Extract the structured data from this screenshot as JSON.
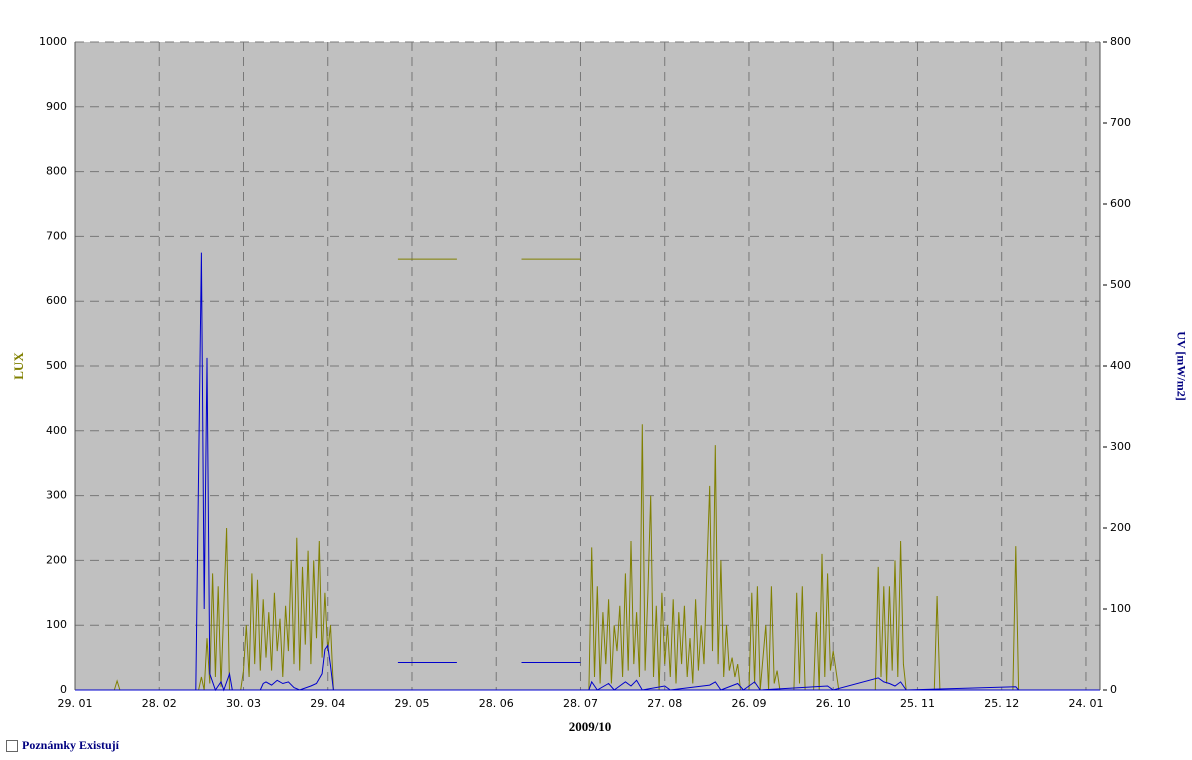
{
  "chart_data": {
    "type": "line",
    "y_label": "LUX",
    "y2_label": "UV [mW/m2]",
    "x_label": "2009/10",
    "xlim": [
      0,
      365
    ],
    "xticks": [
      {
        "value": 0,
        "label": "29. 01"
      },
      {
        "value": 30,
        "label": "28. 02"
      },
      {
        "value": 60,
        "label": "30. 03"
      },
      {
        "value": 90,
        "label": "29. 04"
      },
      {
        "value": 120,
        "label": "29. 05"
      },
      {
        "value": 150,
        "label": "28. 06"
      },
      {
        "value": 180,
        "label": "28. 07"
      },
      {
        "value": 210,
        "label": "27. 08"
      },
      {
        "value": 240,
        "label": "26. 09"
      },
      {
        "value": 270,
        "label": "26. 10"
      },
      {
        "value": 300,
        "label": "25. 11"
      },
      {
        "value": 330,
        "label": "25. 12"
      },
      {
        "value": 360,
        "label": "24. 01"
      }
    ],
    "ylim": [
      0,
      1000
    ],
    "yticks": [
      0,
      100,
      200,
      300,
      400,
      500,
      600,
      700,
      800,
      900,
      1000
    ],
    "y2lim": [
      0,
      800
    ],
    "y2ticks": [
      0,
      100,
      200,
      300,
      400,
      500,
      600,
      700,
      800
    ],
    "grid": true,
    "series": [
      {
        "color": "#808000",
        "axis": "y",
        "x": [
          0,
          14,
          15,
          16,
          44,
          45,
          46,
          47,
          48,
          49,
          50,
          51,
          52,
          54,
          55,
          59,
          60,
          61,
          62,
          63,
          64,
          65,
          66,
          67,
          68,
          69,
          70,
          71,
          72,
          73,
          74,
          75,
          76,
          77,
          78,
          79,
          80,
          81,
          82,
          83,
          84,
          85,
          86,
          87,
          88,
          89,
          90,
          91,
          92,
          104,
          115,
          136,
          148,
          159,
          180,
          182,
          183,
          184,
          185,
          186,
          187,
          188,
          189,
          190,
          191,
          192,
          193,
          194,
          195,
          196,
          197,
          198,
          199,
          200,
          201,
          202,
          203,
          204,
          205,
          206,
          207,
          208,
          209,
          210,
          211,
          212,
          213,
          214,
          215,
          216,
          217,
          218,
          219,
          220,
          221,
          222,
          223,
          224,
          225,
          226,
          227,
          228,
          229,
          230,
          231,
          232,
          233,
          234,
          235,
          236,
          237,
          240,
          241,
          242,
          243,
          244,
          246,
          247,
          248,
          249,
          250,
          251,
          256,
          257,
          258,
          259,
          260,
          263,
          264,
          265,
          266,
          267,
          268,
          269,
          270,
          271,
          272,
          285,
          286,
          287,
          288,
          289,
          290,
          291,
          292,
          293,
          294,
          295,
          296,
          306,
          307,
          308,
          334,
          335,
          336,
          365
        ],
        "values": [
          0,
          0,
          14,
          0,
          0,
          20,
          0,
          80,
          10,
          180,
          20,
          160,
          5,
          250,
          0,
          0,
          30,
          100,
          20,
          180,
          40,
          170,
          30,
          140,
          50,
          120,
          30,
          150,
          60,
          110,
          20,
          130,
          60,
          200,
          40,
          235,
          30,
          190,
          70,
          215,
          40,
          200,
          80,
          230,
          50,
          150,
          60,
          100,
          0,
          null,
          665,
          665,
          null,
          665,
          665,
          null,
          0,
          220,
          20,
          160,
          10,
          120,
          40,
          140,
          10,
          100,
          60,
          130,
          20,
          180,
          30,
          230,
          40,
          120,
          20,
          410,
          30,
          150,
          300,
          20,
          130,
          0,
          150,
          40,
          100,
          20,
          140,
          10,
          120,
          40,
          130,
          20,
          80,
          10,
          140,
          30,
          100,
          40,
          180,
          315,
          60,
          378,
          40,
          200,
          20,
          100,
          30,
          50,
          20,
          40,
          0,
          0,
          150,
          10,
          160,
          0,
          100,
          0,
          160,
          10,
          30,
          0,
          0,
          150,
          10,
          160,
          0,
          0,
          120,
          0,
          210,
          20,
          180,
          30,
          60,
          30,
          0,
          0,
          190,
          20,
          160,
          10,
          160,
          30,
          200,
          20,
          230,
          40,
          0,
          0,
          145,
          0,
          0,
          222,
          0,
          0
        ]
      },
      {
        "color": "#0000cc",
        "axis": "y2",
        "x": [
          0,
          43,
          44,
          45,
          46,
          47,
          48,
          49,
          50,
          52,
          53,
          55,
          56,
          66,
          67,
          68,
          70,
          72,
          74,
          76,
          78,
          80,
          84,
          86,
          88,
          89,
          90,
          91,
          92,
          104,
          115,
          136,
          148,
          159,
          180,
          182,
          183,
          184,
          186,
          190,
          192,
          196,
          198,
          200,
          202,
          210,
          212,
          226,
          228,
          230,
          236,
          238,
          242,
          244,
          268,
          270,
          286,
          288,
          290,
          292,
          294,
          296,
          335,
          336,
          365
        ],
        "values": [
          0,
          0,
          270,
          540,
          100,
          410,
          20,
          10,
          0,
          10,
          0,
          20,
          0,
          0,
          8,
          10,
          6,
          12,
          8,
          10,
          3,
          0,
          5,
          8,
          20,
          50,
          55,
          30,
          0,
          null,
          34,
          34,
          null,
          34,
          34,
          null,
          0,
          10,
          0,
          8,
          0,
          10,
          5,
          12,
          0,
          5,
          0,
          6,
          10,
          0,
          8,
          0,
          10,
          0,
          5,
          0,
          15,
          10,
          8,
          5,
          10,
          0,
          4,
          0,
          0
        ]
      }
    ]
  },
  "footer": {
    "checkbox_label": "Poznámky Existují"
  }
}
